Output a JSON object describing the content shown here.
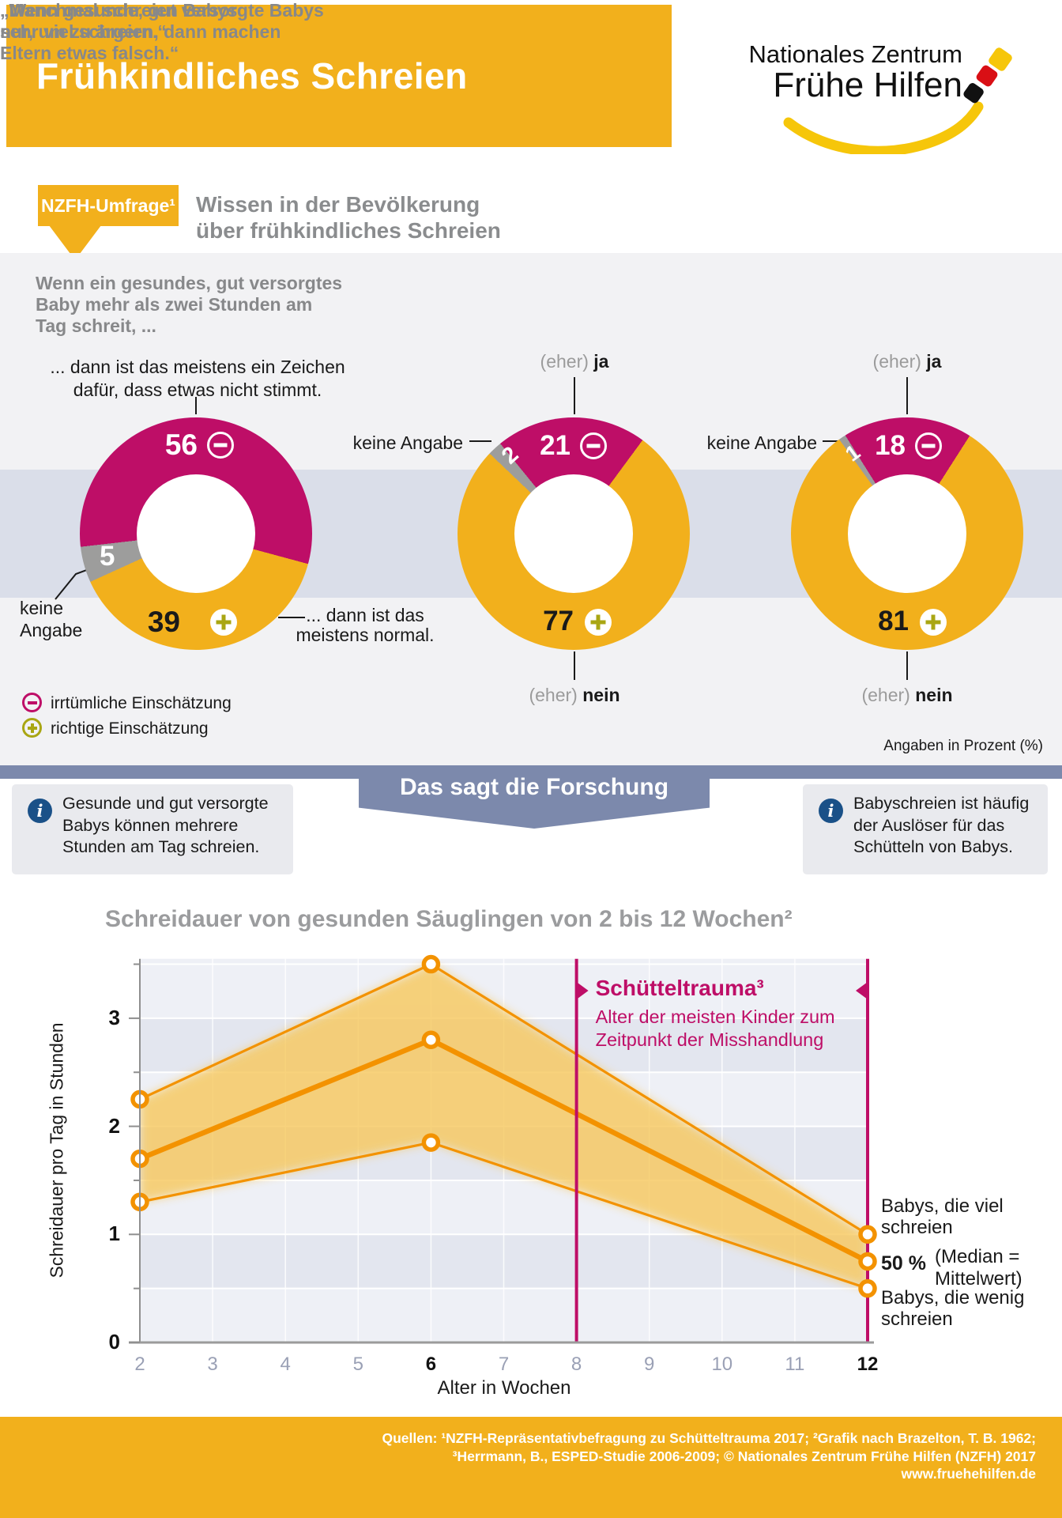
{
  "header": {
    "title": "Frühkindliches Schreien"
  },
  "logo": {
    "line1": "Nationales Zentrum",
    "line2": "Frühe Hilfen"
  },
  "survey": {
    "tag": "NZFH-Umfrage¹",
    "heading": [
      "Wissen in der Bevölkerung",
      "über frühkindliches Schreien"
    ],
    "questions": [
      {
        "lines": [
          "Wenn ein gesundes, gut versorgtes",
          "Baby mehr als zwei Stunden am",
          "Tag schreit, ..."
        ]
      },
      {
        "lines": [
          "„Wenn gesunde, gut versorgte Babys",
          "sehr viel schreien, dann machen",
          "Eltern etwas falsch.“"
        ]
      },
      {
        "lines": [
          "„Manchmal schreien Babys",
          "nur, um zu ärgern.“"
        ]
      }
    ],
    "labels": {
      "answer1_top": [
        "... dann ist das meistens ein Zeichen",
        "dafür, dass etwas nicht stimmt."
      ],
      "answer1_bottom": [
        "... dann ist das",
        "meistens normal."
      ],
      "keine_angabe": "keine Angabe",
      "keine_angabe_l1": "keine",
      "keine_angabe_l2": "Angabe",
      "eher": "(eher)",
      "ja": "ja",
      "nein": "nein"
    },
    "legend": [
      {
        "symbol": "minus",
        "label": "irrtümliche Einschätzung"
      },
      {
        "symbol": "plus",
        "label": "richtige Einschätzung"
      }
    ],
    "note": "Angaben in Prozent (%)"
  },
  "research": {
    "banner": "Das sagt die Forschung",
    "boxes": [
      {
        "lines": [
          "Gesunde und gut versorgte",
          "Babys können mehrere",
          "Stunden am Tag schreien."
        ]
      },
      {
        "lines": [
          "Babyschreien ist häufig",
          "der Auslöser für das",
          "Schütteln von Babys."
        ]
      }
    ]
  },
  "chart_data": [
    {
      "type": "pie",
      "unit": "percent",
      "start_angle": 263.5,
      "question": "Wenn ein gesundes, gut versorgtes Baby mehr als zwei Stunden am Tag schreit, ...",
      "segments": [
        {
          "label": "... dann ist das meistens ein Zeichen dafür, dass etwas nicht stimmt. (irrtümliche Einschätzung)",
          "value": 56,
          "color": "#BE0E67"
        },
        {
          "label": "... dann ist das meistens normal. (richtige Einschätzung)",
          "value": 39,
          "color": "#F2B01C"
        },
        {
          "label": "keine Angabe",
          "value": 5,
          "color": "#9D9D9C"
        }
      ]
    },
    {
      "type": "pie",
      "unit": "percent",
      "start_angle": 313.6,
      "question": "„Wenn gesunde, gut versorgte Babys sehr viel schreien, dann machen Eltern etwas falsch.“",
      "segments": [
        {
          "label": "keine Angabe",
          "value": 2,
          "color": "#9D9D9C"
        },
        {
          "label": "(eher) ja — irrtümliche Einschätzung",
          "value": 21,
          "color": "#BE0E67"
        },
        {
          "label": "(eher) nein — richtige Einschätzung",
          "value": 77,
          "color": "#F2B01C"
        }
      ]
    },
    {
      "type": "pie",
      "unit": "percent",
      "start_angle": 324.2,
      "question": "„Manchmal schreien Babys nur, um zu ärgern.“",
      "segments": [
        {
          "label": "keine Angabe",
          "value": 1,
          "color": "#9D9D9C"
        },
        {
          "label": "(eher) ja — irrtümliche Einschätzung",
          "value": 18,
          "color": "#BE0E67"
        },
        {
          "label": "(eher) nein — richtige Einschätzung",
          "value": 81,
          "color": "#F2B01C"
        }
      ]
    },
    {
      "type": "line",
      "title": "Schreidauer von gesunden Säuglingen von 2 bis 12 Wochen²",
      "xlabel": "Alter in Wochen",
      "ylabel": "Schreidauer pro Tag in Stunden",
      "x": [
        2,
        6,
        12
      ],
      "x_ticks": [
        2,
        3,
        4,
        5,
        6,
        7,
        8,
        9,
        10,
        11,
        12
      ],
      "x_ticks_bold": [
        6,
        12
      ],
      "y_ticks": [
        0,
        1,
        2,
        3
      ],
      "y_minor_ticks": [
        0.5,
        1.5,
        2.5,
        3.5
      ],
      "xlim": [
        2,
        12
      ],
      "ylim": [
        0,
        3.55
      ],
      "series": [
        {
          "name": "Babys, die viel schreien",
          "values": [
            2.25,
            3.5,
            1.0
          ]
        },
        {
          "name": "50 % (Median = Mittelwert)",
          "values": [
            1.7,
            2.8,
            0.75
          ]
        },
        {
          "name": "Babys, die wenig schreien",
          "values": [
            1.3,
            1.85,
            0.5
          ]
        }
      ],
      "annotation": {
        "title": "Schütteltrauma³",
        "lines": [
          "Alter der meisten Kinder zum",
          "Zeitpunkt der Misshandlung"
        ],
        "week_from": 8,
        "week_to": 12
      },
      "right_labels": {
        "viel": [
          "Babys, die viel",
          "schreien"
        ],
        "pct": "50 %",
        "paren": [
          "(Median =",
          "Mittelwert)"
        ],
        "wenig": [
          "Babys, die wenig",
          "schreien"
        ]
      },
      "colors": {
        "line": "#F39200",
        "band": "#F7C85C",
        "annotation": "#BE0E67"
      },
      "grid": true,
      "legend_position": "right"
    }
  ],
  "footer": {
    "lines": [
      "Quellen: ¹NZFH-Repräsentativbefragung zu Schütteltrauma 2017; ²Grafik nach Brazelton, T. B. 1962;",
      "³Herrmann, B., ESPED-Studie 2006-2009; © Nationales Zentrum Frühe Hilfen (NZFH) 2017",
      "www.fruehehilfen.de"
    ]
  }
}
